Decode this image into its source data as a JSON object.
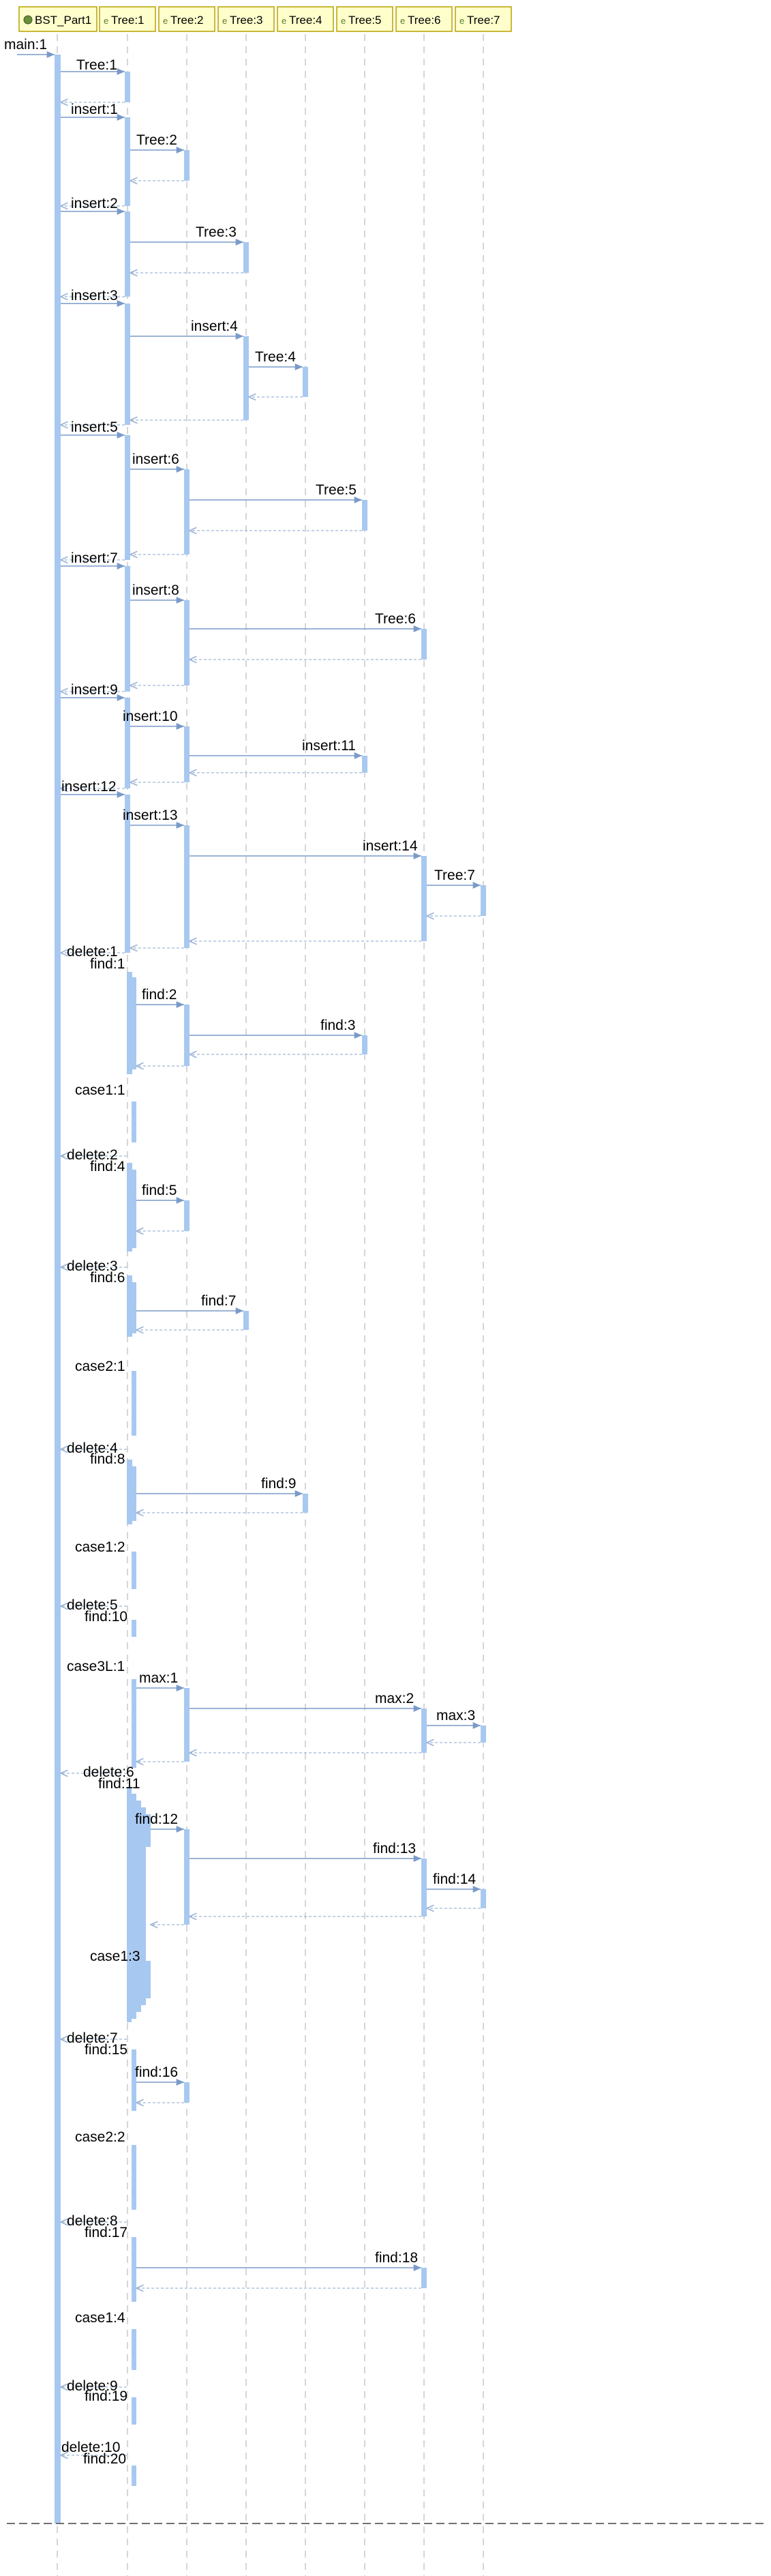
{
  "participants": [
    {
      "id": "BST_Part1",
      "label": "BST_Part1",
      "kind": "class"
    },
    {
      "id": "Tree1",
      "label": "Tree:1",
      "kind": "object"
    },
    {
      "id": "Tree2",
      "label": "Tree:2",
      "kind": "object"
    },
    {
      "id": "Tree3",
      "label": "Tree:3",
      "kind": "object"
    },
    {
      "id": "Tree4",
      "label": "Tree:4",
      "kind": "object"
    },
    {
      "id": "Tree5",
      "label": "Tree:5",
      "kind": "object"
    },
    {
      "id": "Tree6",
      "label": "Tree:6",
      "kind": "object"
    },
    {
      "id": "Tree7",
      "label": "Tree:7",
      "kind": "object"
    }
  ],
  "colors": {
    "header_fill": "#ffffcc",
    "header_border": "#b8a000",
    "activation": "#a7c8f0",
    "arrow": "#7a9ac9",
    "lifeline": "#c8c8c8"
  },
  "messages": [
    "main:1",
    "Tree:1",
    "insert:1",
    "Tree:2",
    "insert:2",
    "Tree:3",
    "insert:3",
    "insert:4",
    "Tree:4",
    "insert:5",
    "insert:6",
    "Tree:5",
    "insert:7",
    "insert:8",
    "Tree:6",
    "insert:9",
    "insert:10",
    "insert:11",
    "insert:12",
    "insert:13",
    "insert:14",
    "Tree:7",
    "delete:1",
    "find:1",
    "find:2",
    "find:3",
    "case1:1",
    "delete:2",
    "find:4",
    "find:5",
    "delete:3",
    "find:6",
    "find:7",
    "case2:1",
    "delete:4",
    "find:8",
    "find:9",
    "case1:2",
    "delete:5",
    "find:10",
    "case3L:1",
    "max:1",
    "max:2",
    "max:3",
    "delete:6",
    "find:11",
    "find:12",
    "find:13",
    "find:14",
    "case1:3",
    "delete:7",
    "find:15",
    "find:16",
    "case2:2",
    "delete:8",
    "find:17",
    "find:18",
    "case1:4",
    "delete:9",
    "find:19",
    "delete:10",
    "find:20"
  ]
}
